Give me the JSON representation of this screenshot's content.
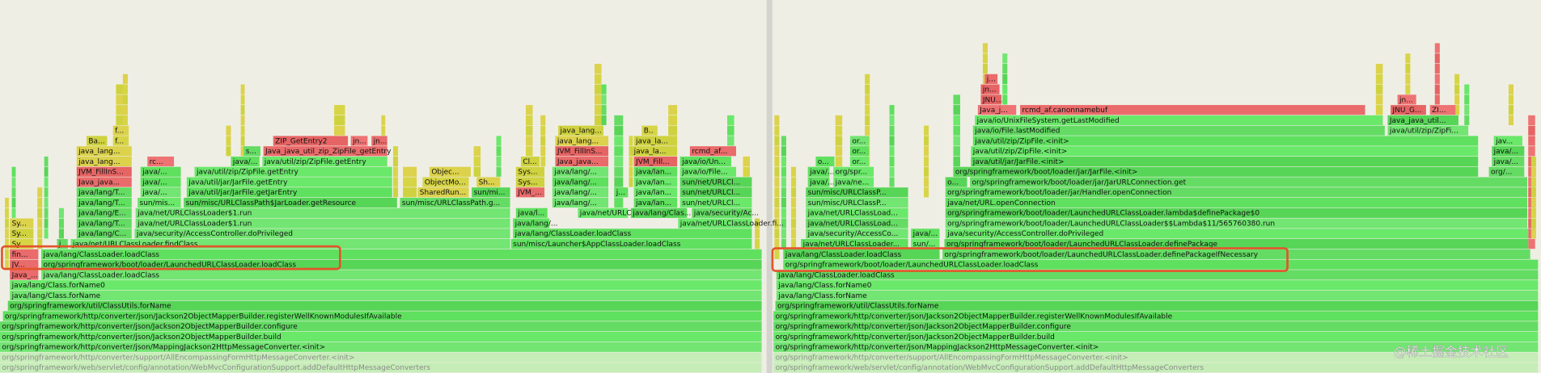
{
  "left_flamegraph": {
    "frames": [
      "org/springframework/web/servlet/config/annotation/WebMvcConfigurationSupport.addDefaultHttpMessageConverters",
      "org/springframework/http/converter/support/AllEncompassingFormHttpMessageConverter.<init>",
      "org/springframework/http/converter/json/MappingJackson2HttpMessageConverter.<init>",
      "org/springframework/http/converter/json/Jackson2ObjectMapperBuilder.build",
      "org/springframework/http/converter/json/Jackson2ObjectMapperBuilder.configure",
      "org/springframework/http/converter/json/Jackson2ObjectMapperBuilder.registerWellKnownModulesIfAvailable",
      "org/springframework/util/ClassUtils.forName",
      "java/lang/Class.forName",
      "java/lang/Class.forName0",
      "Java_...",
      "java/lang/ClassLoader.loadClass",
      "JV...",
      "org/springframework/boot/loader/LaunchedURLClassLoader.loadClass",
      "fin...",
      "java/lang/ClassLoader.loadClass",
      "Sy...",
      "j...",
      "java/net/URLClassLoader.findClass",
      "sun/misc/Launcher$AppClassLoader.loadClass",
      "Sy...",
      "java/lang/C...",
      "java/security/AccessController.doPrivileged",
      "java/lang/ClassLoader.loadClass",
      "Sy...",
      "java/lang/T...",
      "java/net/URLClassLoader$1.run",
      "java/lang/...",
      "java/net/URLClassLoader.fi...",
      "java/lang/E...",
      "java/net/URLClassLoader$1.run",
      "java/l...",
      "java/net/URLCla...",
      "java/lang/Clas...",
      "java/security/Ac...",
      "java/lang/T...",
      "sun/mis...",
      "sun/misc/URLClassPath$JarLoader.getResource",
      "sun/misc/URLClassPath.g...",
      "java/lang/...",
      "java/lan...",
      "sun/net/URLCl...",
      "java/lang/T...",
      "java/...",
      "java/util/jar/JarFile.getJarEntry",
      "SharedRun...",
      "sun/mi...",
      "JVM_...",
      "java/lang/...",
      "j...",
      "java/lan...",
      "sun/net/URLCl...",
      "Java_java...",
      "java/...",
      "java/util/jar/JarFile.getEntry",
      "ObjectMo...",
      "Sh...",
      "Sys...",
      "java/lang/...",
      "java/lan...",
      "sun/net/URLCl...",
      "JVM_FillInS...",
      "java/...",
      "java/util/zip/ZipFile.getEntry",
      "Objec...",
      "Sys...",
      "java/lang/...",
      "java/lan...",
      "java/io/File...",
      "java_lang...",
      "rc...",
      "java/...",
      "java/util/zip/ZipFile.getEntry",
      "Cl...",
      "Java_java...",
      "JVM_Fill...",
      "java/io/Un...",
      "java_lang...",
      "s...",
      "Java_java_util_zip_ZipFile_getEntry",
      "JVM_FillInS...",
      "java_la...",
      "rcmd_af...",
      "Ba...",
      "f...",
      "ZIP_GetEntry2",
      "jn...",
      "jn...",
      "java_lang...",
      "java_la...",
      "f...",
      "java_lang...",
      "B.."
    ]
  },
  "right_flamegraph": {
    "frames": [
      "org/springframework/web/servlet/config/annotation/WebMvcConfigurationSupport.addDefaultHttpMessageConverters",
      "org/springframework/http/converter/support/AllEncompassingFormHttpMessageConverter.<init>",
      "org/springframework/http/converter/json/MappingJackson2HttpMessageConverter.<init>",
      "org/springframework/http/converter/json/Jackson2ObjectMapperBuilder.build",
      "org/springframework/http/converter/json/Jackson2ObjectMapperBuilder.configure",
      "org/springframework/http/converter/json/Jackson2ObjectMapperBuilder.registerWellKnownModulesIfAvailable",
      "org/springframework/util/ClassUtils.forName",
      "java/lang/Class.forName",
      "java/lang/Class.forName0",
      "java/lang/ClassLoader.loadClass",
      "org/springframework/boot/loader/LaunchedURLClassLoader.loadClass",
      "java/lang/ClassLoader.loadClass",
      "org/springframework/boot/loader/LaunchedURLClassLoader.definePackageIfNecessary",
      "java/net/URLClassLoader...",
      "sun/...",
      "org/springframework/boot/loader/LaunchedURLClassLoader.definePackage",
      "java/security/AccessCo...",
      "java/...",
      "java/security/AccessController.doPrivileged",
      "java/net/URLClassLoad...",
      "org/springframework/boot/loader/LaunchedURLClassLoader$$Lambda$11/565760380.run",
      "java/net/URLClassLoad...",
      "org/springframework/boot/loader/LaunchedURLClassLoader.lambda$definePackage$0",
      "sun/misc/URLClassP...",
      "java/net/URL.openConnection",
      "sun/misc/URLClassP...",
      "org/springframework/boot/loader/jar/Handler.openConnection",
      "java/...",
      "java/ne...",
      "o...",
      "org/springframework/boot/loader/jar/JarURLConnection.get",
      "java/...",
      "org/spr...",
      "org/springframework/boot/loader/jar/JarFile.<init>",
      "org/...",
      "o...",
      "or...",
      "java/util/jar/JarFile.<init>",
      "java/...",
      "or...",
      "java/util/zip/ZipFile.<init>",
      "java/...",
      "or...",
      "java/util/zip/ZipFile.<init>",
      "jav...",
      "java/io/File.lastModified",
      "java/util/zip/ZipFi...",
      "java/io/UnixFileSystem.getLastModified",
      "Java_java_util...",
      "Java_j...",
      "rcmd_af.canonnamebuf",
      "JNU_G...",
      "ZI...",
      "JNU...",
      "jn...",
      "jn...",
      "j..."
    ]
  },
  "watermark": "@稀土掘金技术社区"
}
